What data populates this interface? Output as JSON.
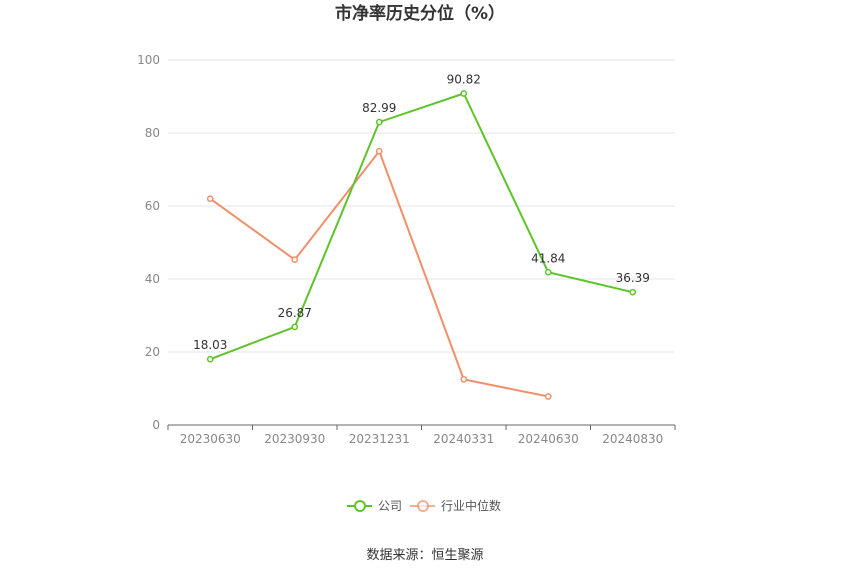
{
  "chart_data": {
    "type": "line",
    "title": "市净率历史分位（%）",
    "categories": [
      "20230630",
      "20230930",
      "20231231",
      "20240331",
      "20240630",
      "20240830"
    ],
    "ylim": [
      0,
      100
    ],
    "yticks": [
      0,
      20,
      40,
      60,
      80,
      100
    ],
    "grid": true,
    "legend_position": "bottom-center",
    "series": [
      {
        "name": "公司",
        "color": "#5fc42b",
        "values": [
          18.03,
          26.87,
          82.99,
          90.82,
          41.84,
          36.39
        ],
        "labels": [
          "18.03",
          "26.87",
          "82.99",
          "90.82",
          "41.84",
          "36.39"
        ]
      },
      {
        "name": "行业中位数",
        "color": "#f0906a",
        "values": [
          62.0,
          45.3,
          75.0,
          12.5,
          7.8,
          null
        ]
      }
    ]
  },
  "source": "数据来源：恒生聚源"
}
